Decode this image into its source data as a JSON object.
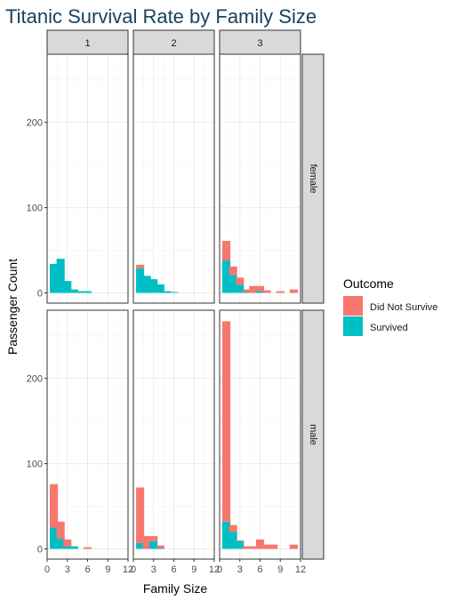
{
  "chart_data": {
    "type": "bar",
    "title": "Titanic Survival Rate by Family Size",
    "xlabel": "Family Size",
    "ylabel": "Passenger Count",
    "xlim": [
      0,
      12
    ],
    "ylim": [
      -12,
      280
    ],
    "x_ticks": [
      "0",
      "3",
      "6",
      "9",
      "12"
    ],
    "y_ticks": [
      "0",
      "100",
      "200"
    ],
    "grid": true,
    "legend_position": "right",
    "legend_title": "Outcome",
    "bin_width": 1.2,
    "column_facets": [
      "1",
      "2",
      "3"
    ],
    "row_facets": [
      "female",
      "male"
    ],
    "series": [
      {
        "name": "Did Not Survive",
        "color": "#F8766D"
      },
      {
        "name": "Survived",
        "color": "#00BFC4"
      }
    ],
    "panels": [
      {
        "col": "1",
        "row": "female",
        "bins": [
          [
            1,
            0,
            34
          ],
          [
            2,
            0,
            40
          ],
          [
            3,
            0,
            14
          ],
          [
            4,
            0,
            4
          ],
          [
            5,
            0,
            2
          ],
          [
            6,
            0,
            2
          ]
        ]
      },
      {
        "col": "2",
        "row": "female",
        "bins": [
          [
            1,
            4,
            29
          ],
          [
            2,
            0,
            20
          ],
          [
            3,
            0,
            16
          ],
          [
            4,
            0,
            10
          ],
          [
            5,
            0,
            2
          ],
          [
            6,
            0,
            1
          ]
        ]
      },
      {
        "col": "3",
        "row": "female",
        "bins": [
          [
            1,
            23,
            38
          ],
          [
            2,
            10,
            21
          ],
          [
            3,
            8,
            10
          ],
          [
            4,
            3,
            1
          ],
          [
            5,
            8,
            0
          ],
          [
            6,
            6,
            2
          ],
          [
            7,
            3,
            0
          ],
          [
            9,
            2,
            0
          ],
          [
            11,
            4,
            0
          ]
        ]
      },
      {
        "col": "1",
        "row": "male",
        "bins": [
          [
            1,
            51,
            25
          ],
          [
            2,
            20,
            12
          ],
          [
            3,
            8,
            3
          ],
          [
            4,
            0,
            3
          ],
          [
            6,
            2,
            0
          ]
        ]
      },
      {
        "col": "2",
        "row": "male",
        "bins": [
          [
            1,
            65,
            7
          ],
          [
            2,
            15,
            0
          ],
          [
            3,
            6,
            9
          ],
          [
            4,
            3,
            1
          ]
        ]
      },
      {
        "col": "3",
        "row": "male",
        "bins": [
          [
            1,
            235,
            32
          ],
          [
            2,
            8,
            20
          ],
          [
            3,
            1,
            9
          ],
          [
            4,
            3,
            0
          ],
          [
            5,
            3,
            0
          ],
          [
            6,
            11,
            0
          ],
          [
            7,
            5,
            0
          ],
          [
            8,
            5,
            0
          ],
          [
            11,
            5,
            0
          ]
        ]
      }
    ]
  }
}
